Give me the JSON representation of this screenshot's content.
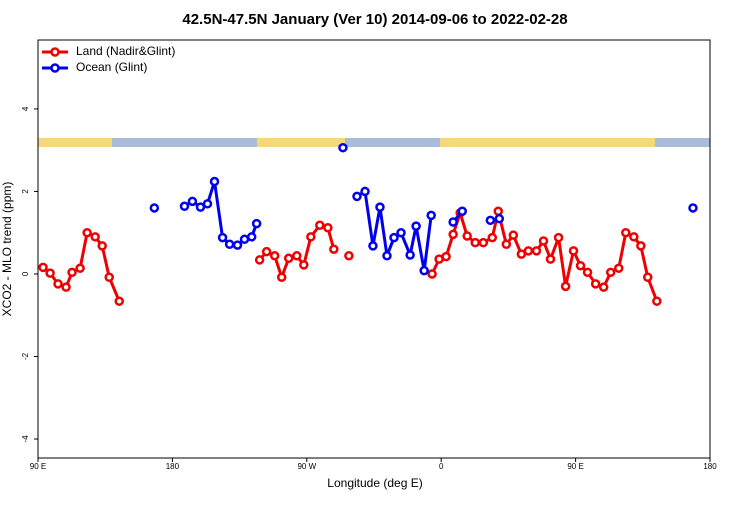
{
  "chart_data": {
    "type": "line",
    "title": "42.5N-47.5N January (Ver 10)   2014-09-06 to 2022-02-28",
    "x_label": "Longitude (deg E)",
    "y_label": "XCO2 - MLO trend (ppm)",
    "xlim": [
      90,
      540
    ],
    "xticks": [
      {
        "value": 90,
        "label": "90 E"
      },
      180,
      {
        "value": 270,
        "label": "90 W"
      },
      {
        "value": 360,
        "label": "0"
      },
      {
        "value": 450,
        "label": "90 E"
      },
      {
        "value": 540,
        "label": "180"
      }
    ],
    "ylim": [
      -4.46,
      5.67
    ],
    "yticks": [
      -4,
      -2,
      0,
      2,
      4
    ],
    "legend": "top-left",
    "series": [
      {
        "name": "Land (Nadir&Glint)",
        "color": "#ee0000",
        "x": [
          93.4,
          98.1,
          103.4,
          108.8,
          112.8,
          118.2,
          122.9,
          128.3,
          133.0,
          137.7,
          144.4,
          null,
          238.4,
          243.1,
          248.5,
          253.2,
          257.9,
          263.3,
          268.0,
          272.7,
          278.7,
          284.1,
          288.1,
          null,
          298.2,
          null,
          353.9,
          358.6,
          363.3,
          368.0,
          372.7,
          377.4,
          382.8,
          388.2,
          394.2,
          398.2,
          403.6,
          408.3,
          413.7,
          418.4,
          423.8,
          428.5,
          433.2,
          438.6,
          443.3,
          448.6,
          453.3,
          458.0,
          463.4,
          468.8,
          473.5,
          478.9,
          483.6,
          489.0,
          493.7,
          498.3,
          504.4
        ],
        "values": [
          0.16,
          0.02,
          -0.24,
          -0.32,
          0.04,
          0.14,
          1.0,
          0.9,
          0.68,
          -0.08,
          -0.66,
          null,
          0.34,
          0.54,
          0.44,
          -0.08,
          0.38,
          0.44,
          0.22,
          0.9,
          1.18,
          1.12,
          0.6,
          null,
          0.44,
          null,
          0.0,
          0.36,
          0.42,
          0.96,
          1.48,
          0.92,
          0.76,
          0.76,
          0.88,
          1.52,
          0.72,
          0.94,
          0.48,
          0.56,
          0.56,
          0.8,
          0.36,
          0.88,
          -0.3,
          0.56,
          0.2,
          0.04,
          -0.24,
          -0.32,
          0.04,
          0.14,
          1.0,
          0.9,
          0.68,
          -0.08,
          -0.66
        ]
      },
      {
        "name": "Ocean (Glint)",
        "color": "#0000ee",
        "x": [
          167.9,
          null,
          188.1,
          193.4,
          198.8,
          203.5,
          208.2,
          213.6,
          218.3,
          223.6,
          228.3,
          233.1,
          236.4,
          null,
          294.2,
          null,
          303.6,
          309.0,
          314.3,
          319.0,
          323.7,
          328.4,
          333.1,
          339.2,
          343.2,
          348.6,
          353.3,
          null,
          368.0,
          374.1,
          null,
          392.9,
          398.9,
          null,
          528.6
        ],
        "values": [
          1.6,
          null,
          1.64,
          1.76,
          1.62,
          1.7,
          2.24,
          0.88,
          0.72,
          0.7,
          0.84,
          0.9,
          1.22,
          null,
          3.06,
          null,
          1.88,
          2.0,
          0.68,
          1.62,
          0.44,
          0.88,
          1.0,
          0.46,
          1.16,
          0.08,
          1.42,
          null,
          1.26,
          1.52,
          null,
          1.3,
          1.34,
          null,
          1.6
        ]
      }
    ]
  }
}
